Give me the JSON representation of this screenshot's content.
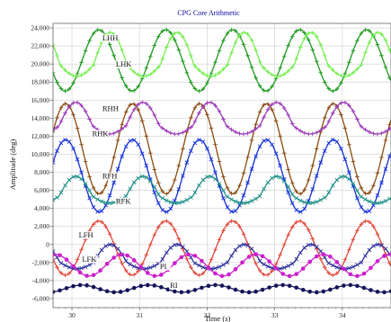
{
  "chart_data": {
    "type": "line",
    "title": "CPG Core Arithmetic",
    "xlabel": "Time (s)",
    "ylabel": "Amplitude (deg)",
    "xlim": [
      29.72,
      34.72
    ],
    "ylim": [
      -7000,
      24500
    ],
    "xticks": [
      30,
      31,
      32,
      33,
      34
    ],
    "xtick_labels": [
      "30",
      "31",
      "32",
      "33",
      "34"
    ],
    "yticks": [
      -6000,
      -4000,
      -2000,
      0,
      2000,
      4000,
      6000,
      8000,
      10000,
      12000,
      14000,
      16000,
      18000,
      20000,
      22000,
      24000
    ],
    "ytick_labels": [
      "-6,000",
      "-4,000",
      "-2,000",
      "0",
      "2,000",
      "4,000",
      "6,000",
      "8,000",
      "10,000",
      "12,000",
      "14,000",
      "16,000",
      "18,000",
      "20,000",
      "22,000",
      "24,000"
    ],
    "grid": true,
    "series": [
      {
        "name": "LHH",
        "color": "#1f9a1f",
        "marker": "plus",
        "kind": "sine",
        "offset": 20400,
        "amp": 3400,
        "period": 0.99,
        "phase": 0.45,
        "label_x": 30.45,
        "label_y": 22600
      },
      {
        "name": "LHK",
        "color": "#73ee4c",
        "marker": "plus",
        "kind": "hump",
        "offset": 19000,
        "amp": 3600,
        "period": 0.99,
        "phase": 0.62,
        "label_x": 30.65,
        "label_y": 19700
      },
      {
        "name": "RHH",
        "color": "#8b4a10",
        "marker": "plus",
        "kind": "sine",
        "offset": 10600,
        "amp": 5000,
        "period": 0.99,
        "phase": 0.95,
        "label_x": 30.45,
        "label_y": 14800
      },
      {
        "name": "RHK",
        "color": "#9a3ab8",
        "marker": "plus",
        "kind": "hump",
        "offset": 12500,
        "amp": 2600,
        "period": 0.99,
        "phase": 1.1,
        "label_x": 30.3,
        "label_y": 12000
      },
      {
        "name": "RFH",
        "color": "#1530d8",
        "marker": "x",
        "kind": "sine",
        "offset": 7600,
        "amp": 4000,
        "period": 0.99,
        "phase": 0.95,
        "label_x": 30.45,
        "label_y": 7300
      },
      {
        "name": "RFK",
        "color": "#1f8f88",
        "marker": "x",
        "kind": "hump",
        "offset": 4800,
        "amp": 2200,
        "period": 0.99,
        "phase": 1.1,
        "label_x": 30.65,
        "label_y": 4500
      },
      {
        "name": "LFH",
        "color": "#e2473a",
        "marker": "plus",
        "kind": "sine",
        "offset": -400,
        "amp": 3000,
        "period": 0.99,
        "phase": 0.45,
        "label_x": 30.1,
        "label_y": 800
      },
      {
        "name": "LFK",
        "color": "#2c2f9c",
        "marker": "x",
        "kind": "hump",
        "offset": -2500,
        "amp": 2000,
        "period": 0.99,
        "phase": 0.62,
        "label_x": 30.15,
        "label_y": -1900
      },
      {
        "name": "PI",
        "color": "#cc1fcc",
        "marker": "dot",
        "kind": "sine",
        "offset": -2300,
        "amp": 1200,
        "period": 0.99,
        "phase": 0.8,
        "label_x": 31.3,
        "label_y": -2700
      },
      {
        "name": "RI",
        "color": "#14145a",
        "marker": "dot",
        "kind": "sine",
        "offset": -4900,
        "amp": 400,
        "period": 0.99,
        "phase": 0.2,
        "label_x": 31.45,
        "label_y": -4800
      }
    ]
  }
}
